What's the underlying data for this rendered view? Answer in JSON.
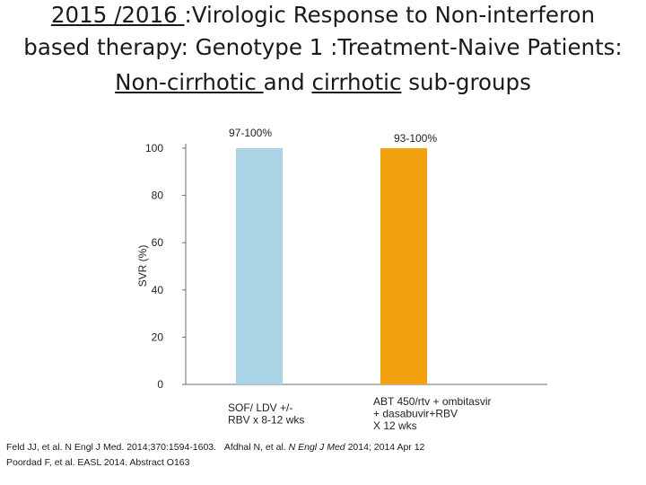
{
  "title": {
    "line1_a": "2015 /2016 ",
    "line1_b": ":Virologic Response to Non-interferon",
    "line2": "based therapy: Genotype 1 :Treatment-Naive Patients:",
    "line3_a": "Non-cirrhotic ",
    "line3_b": "and ",
    "line3_c": "cirrhotic",
    "line3_d": " sub-groups"
  },
  "chart_data": {
    "type": "bar",
    "ylabel": "SVR (%)",
    "ylim": [
      0,
      100
    ],
    "yticks": [
      0,
      20,
      40,
      60,
      80,
      100
    ],
    "categories": [
      [
        "SOF/ LDV +/-",
        "RBV x 8-12 wks"
      ],
      [
        "ABT 450/rtv + ombitasvir",
        "+ dasabuvir+RBV",
        "X 12 wks"
      ]
    ],
    "values": [
      100,
      100
    ],
    "data_labels": [
      "97-100%",
      "93-100%"
    ],
    "colors": [
      "#abd3e6",
      "#f2a20d"
    ]
  },
  "footnotes": {
    "line1_a": "Feld JJ, et al. N Engl J Med. 2014;370:1594-1603.",
    "line1_b": "Afdhal N, et al. ",
    "line1_c": "N Engl J Med",
    "line1_d": " 2014; 2014 Apr 12",
    "line2": "Poordad F, et al. EASL 2014. Abstract O163"
  }
}
